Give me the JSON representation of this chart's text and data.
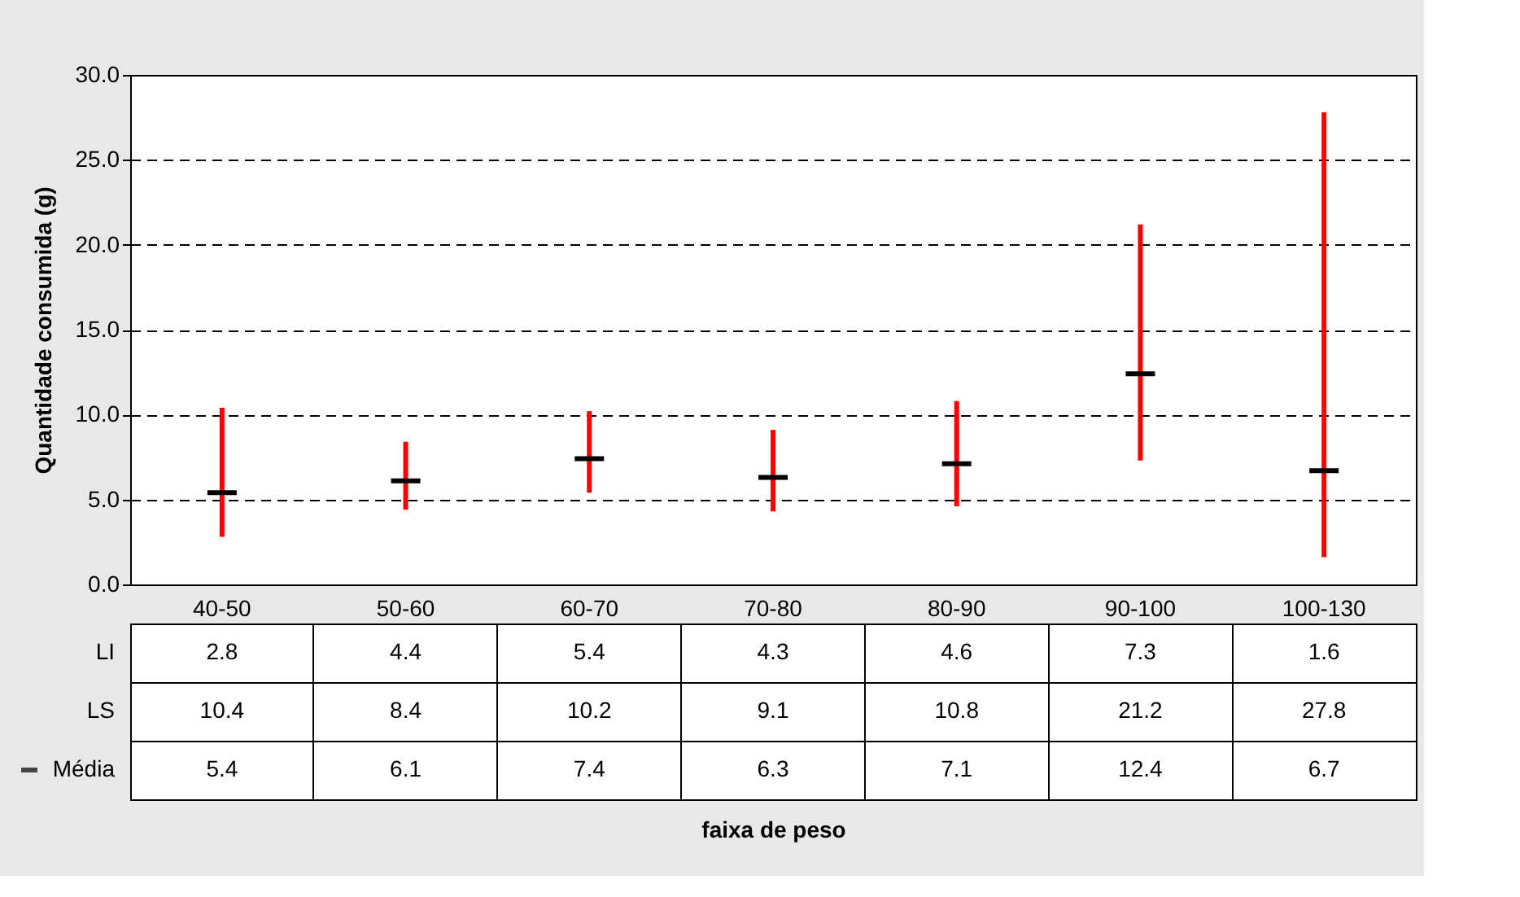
{
  "chart_data": [
    {
      "type": "candlestick",
      "ylabel": "Quantidade consumida (g)",
      "categories": [
        "40-50",
        "50-60",
        "60-70",
        "70-80",
        "80-90",
        "90-100",
        "100-130"
      ],
      "ohlc": [
        [
          5.4,
          10.4,
          2.8,
          5.4
        ],
        [
          6.1,
          8.4,
          4.4,
          6.1
        ],
        [
          7.4,
          10.2,
          5.4,
          7.4
        ],
        [
          6.3,
          9.1,
          4.3,
          6.3
        ],
        [
          7.1,
          10.8,
          4.6,
          7.1
        ],
        [
          12.4,
          21.2,
          7.3,
          12.4
        ],
        [
          6.7,
          27.8,
          1.6,
          6.7
        ]
      ],
      "colors": [
        "#000000",
        "#000000",
        "#000000",
        "#000000",
        "#000000",
        "#000000",
        "#000000"
      ],
      "ylim": [
        0,
        30
      ],
      "yticks": [
        {
          "value": 0,
          "label": "0.0"
        },
        {
          "value": 5,
          "label": "5.0"
        },
        {
          "value": 10,
          "label": "10.0"
        },
        {
          "value": 15,
          "label": "15.0"
        },
        {
          "value": 20,
          "label": "20.0"
        },
        {
          "value": 25,
          "label": "25.0"
        },
        {
          "value": 30,
          "label": "30.0"
        }
      ],
      "grid": "y"
    },
    {
      "type": "other",
      "annotations": [
        "LI",
        "2.8",
        "4.4",
        "5.4",
        "4.3",
        "4.6",
        "7.3",
        "1.6",
        "LS",
        "10.4",
        "8.4",
        "10.2",
        "9.1",
        "10.8",
        "21.2",
        "27.8",
        "Média",
        "5.4",
        "6.1",
        "7.4",
        "6.3",
        "7.1",
        "12.4",
        "6.7",
        "faixa de peso"
      ]
    }
  ]
}
